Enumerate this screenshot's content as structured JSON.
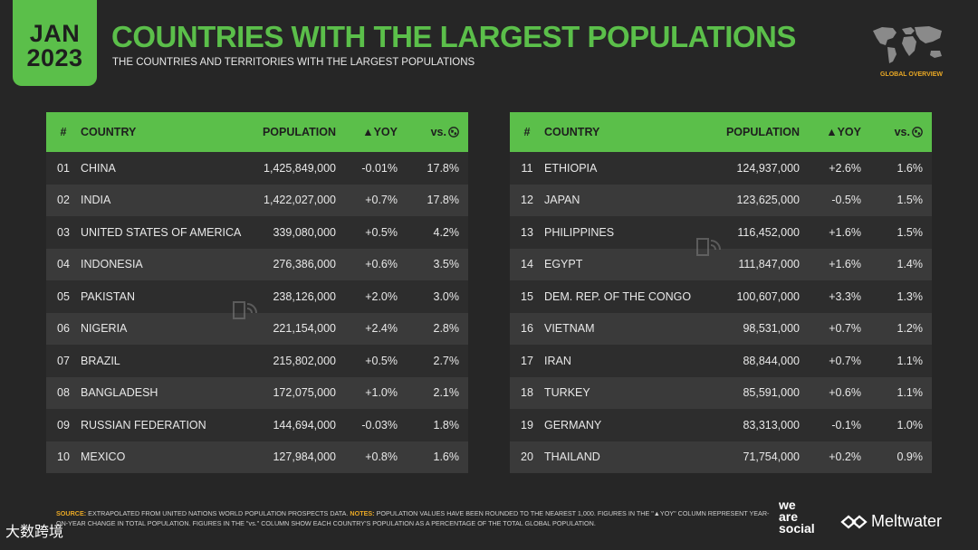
{
  "header": {
    "month": "JAN",
    "year": "2023",
    "title": "COUNTRIES WITH THE LARGEST POPULATIONS",
    "subtitle": "THE COUNTRIES AND TERRITORIES WITH THE LARGEST POPULATIONS",
    "section_label": "GLOBAL OVERVIEW"
  },
  "table": {
    "columns": [
      "#",
      "COUNTRY",
      "POPULATION",
      "▲YOY",
      "vs."
    ],
    "left_rows": [
      {
        "num": "01",
        "country": "CHINA",
        "population": "1,425,849,000",
        "yoy": "-0.01%",
        "share": "17.8%"
      },
      {
        "num": "02",
        "country": "INDIA",
        "population": "1,422,027,000",
        "yoy": "+0.7%",
        "share": "17.8%"
      },
      {
        "num": "03",
        "country": "UNITED STATES OF AMERICA",
        "population": "339,080,000",
        "yoy": "+0.5%",
        "share": "4.2%"
      },
      {
        "num": "04",
        "country": "INDONESIA",
        "population": "276,386,000",
        "yoy": "+0.6%",
        "share": "3.5%"
      },
      {
        "num": "05",
        "country": "PAKISTAN",
        "population": "238,126,000",
        "yoy": "+2.0%",
        "share": "3.0%"
      },
      {
        "num": "06",
        "country": "NIGERIA",
        "population": "221,154,000",
        "yoy": "+2.4%",
        "share": "2.8%"
      },
      {
        "num": "07",
        "country": "BRAZIL",
        "population": "215,802,000",
        "yoy": "+0.5%",
        "share": "2.7%"
      },
      {
        "num": "08",
        "country": "BANGLADESH",
        "population": "172,075,000",
        "yoy": "+1.0%",
        "share": "2.1%"
      },
      {
        "num": "09",
        "country": "RUSSIAN FEDERATION",
        "population": "144,694,000",
        "yoy": "-0.03%",
        "share": "1.8%"
      },
      {
        "num": "10",
        "country": "MEXICO",
        "population": "127,984,000",
        "yoy": "+0.8%",
        "share": "1.6%"
      }
    ],
    "right_rows": [
      {
        "num": "11",
        "country": "ETHIOPIA",
        "population": "124,937,000",
        "yoy": "+2.6%",
        "share": "1.6%"
      },
      {
        "num": "12",
        "country": "JAPAN",
        "population": "123,625,000",
        "yoy": "-0.5%",
        "share": "1.5%"
      },
      {
        "num": "13",
        "country": "PHILIPPINES",
        "population": "116,452,000",
        "yoy": "+1.6%",
        "share": "1.5%"
      },
      {
        "num": "14",
        "country": "EGYPT",
        "population": "111,847,000",
        "yoy": "+1.6%",
        "share": "1.4%"
      },
      {
        "num": "15",
        "country": "DEM. REP. OF THE CONGO",
        "population": "100,607,000",
        "yoy": "+3.3%",
        "share": "1.3%"
      },
      {
        "num": "16",
        "country": "VIETNAM",
        "population": "98,531,000",
        "yoy": "+0.7%",
        "share": "1.2%"
      },
      {
        "num": "17",
        "country": "IRAN",
        "population": "88,844,000",
        "yoy": "+0.7%",
        "share": "1.1%"
      },
      {
        "num": "18",
        "country": "TURKEY",
        "population": "85,591,000",
        "yoy": "+0.6%",
        "share": "1.1%"
      },
      {
        "num": "19",
        "country": "GERMANY",
        "population": "83,313,000",
        "yoy": "-0.1%",
        "share": "1.0%"
      },
      {
        "num": "20",
        "country": "THAILAND",
        "population": "71,754,000",
        "yoy": "+0.2%",
        "share": "0.9%"
      }
    ]
  },
  "footer": {
    "source_label": "SOURCE:",
    "source_text": "EXTRAPOLATED FROM UNITED NATIONS WORLD POPULATION PROSPECTS DATA.",
    "notes_label": "NOTES:",
    "notes_text": "POPULATION VALUES HAVE BEEN ROUNDED TO THE NEAREST 1,000. FIGURES IN THE \"▲YOY\" COLUMN REPRESENT YEAR-ON-YEAR CHANGE IN TOTAL POPULATION. FIGURES IN THE \"vs.\" COLUMN SHOW EACH COUNTRY'S POPULATION AS A PERCENTAGE OF THE TOTAL GLOBAL POPULATION."
  },
  "brands": {
    "we_are_social": [
      "we",
      "are",
      "social"
    ],
    "meltwater": "Meltwater",
    "source_watermark": "大数跨境"
  },
  "colors": {
    "accent_green": "#5bbf4a",
    "background": "#262626",
    "row_dark": "#2d2d2d",
    "row_light": "#3a3a3a",
    "label_orange": "#e9a825"
  },
  "icons": [
    "globe-icon",
    "world-map-icon",
    "datareportal-watermark-icon",
    "meltwater-logo-icon"
  ]
}
